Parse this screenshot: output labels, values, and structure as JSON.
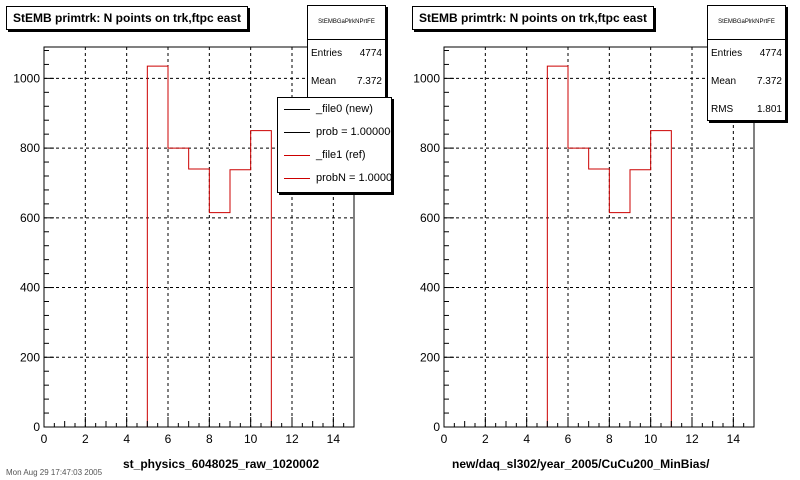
{
  "chart_data": [
    {
      "type": "bar",
      "title": "StEMB primtrk: N points on trk,ftpc east",
      "xlabel": "st_physics_6048025_raw_1020002",
      "ylabel": "",
      "xlim": [
        0,
        15
      ],
      "ylim": [
        0,
        1090
      ],
      "xticks": [
        0,
        2,
        4,
        6,
        8,
        10,
        12,
        14
      ],
      "yticks": [
        0,
        200,
        400,
        600,
        800,
        1000
      ],
      "grid": true,
      "bin_edges": [
        0,
        1,
        2,
        3,
        4,
        5,
        6,
        7,
        8,
        9,
        10,
        11,
        12,
        13,
        14,
        15
      ],
      "series": [
        {
          "name": "_file1 (ref)",
          "color": "#cc0000",
          "values": [
            0,
            0,
            0,
            0,
            0,
            1035,
            800,
            740,
            615,
            738,
            850,
            0,
            0,
            0,
            0
          ]
        }
      ],
      "stats": {
        "name": "StEMBGaPlrkNPrtFE",
        "entries": "4774",
        "mean": "7.372"
      },
      "legend": {
        "position": "top-right",
        "items": [
          {
            "label": "_file0 (new)",
            "color": "#000000"
          },
          {
            "label": "prob = 1.000000",
            "color": "#000000"
          },
          {
            "label": "_file1 (ref)",
            "color": "#cc0000"
          },
          {
            "label": "probN = 1.000000",
            "color": "#cc0000"
          }
        ]
      }
    },
    {
      "type": "bar",
      "title": "StEMB primtrk: N points on trk,ftpc east",
      "xlabel": "new/daq_sl302/year_2005/CuCu200_MinBias/",
      "ylabel": "",
      "xlim": [
        0,
        15
      ],
      "ylim": [
        0,
        1090
      ],
      "xticks": [
        0,
        2,
        4,
        6,
        8,
        10,
        12,
        14
      ],
      "yticks": [
        0,
        200,
        400,
        600,
        800,
        1000
      ],
      "grid": true,
      "bin_edges": [
        0,
        1,
        2,
        3,
        4,
        5,
        6,
        7,
        8,
        9,
        10,
        11,
        12,
        13,
        14,
        15
      ],
      "series": [
        {
          "name": "_file1 (ref)",
          "color": "#cc0000",
          "values": [
            0,
            0,
            0,
            0,
            0,
            1035,
            800,
            740,
            615,
            738,
            850,
            0,
            0,
            0,
            0
          ]
        }
      ],
      "stats": {
        "name": "StEMBGaPlrkNPrtFE",
        "entries": "4774",
        "mean": "7.372",
        "rms": "1.801"
      }
    }
  ],
  "ui": {
    "entries_label": "Entries",
    "mean_label": "Mean",
    "rms_label": "RMS",
    "footer": "Mon Aug 29 17:47:03 2005"
  }
}
